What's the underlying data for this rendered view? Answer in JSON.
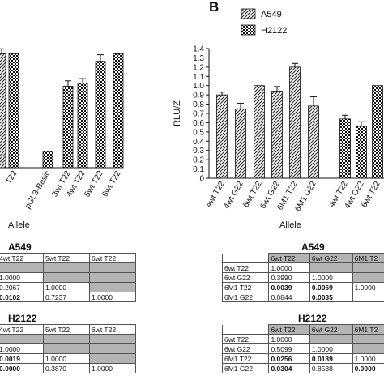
{
  "panel_b_label": "B",
  "chart_data": [
    {
      "type": "bar",
      "title": "",
      "xlabel": "Allele",
      "ylabel": "",
      "ylim": [
        0,
        1.5
      ],
      "categories": [
        "pGL3-Basic",
        "3wt T22",
        "4wt T22",
        "5wt T22",
        "6wt T22"
      ],
      "cut_categories": [
        "T22"
      ],
      "values": [
        0.15,
        0.75,
        0.78,
        0.98,
        1.05
      ],
      "errors": [
        0.0,
        0.05,
        0.04,
        0.06,
        0.0
      ],
      "series": [
        {
          "name": "",
          "pattern": "hatch",
          "values": [
            null,
            null,
            null,
            null,
            null
          ]
        },
        {
          "name": "",
          "pattern": "checker",
          "values": [
            0.15,
            0.75,
            0.78,
            0.98,
            1.05
          ]
        }
      ]
    },
    {
      "type": "bar",
      "title": "",
      "xlabel": "Allele",
      "ylabel": "RLU/Z",
      "ylim": [
        0,
        1.4
      ],
      "yticks": [
        "0",
        "0.1",
        "0.2",
        "0.3",
        "0.4",
        "0.5",
        "0.6",
        "0.7",
        "0.8",
        "0.9",
        "1.0",
        "1.1",
        "1.2",
        "1.3",
        "1.4"
      ],
      "categories": [
        "4wt T22",
        "4wt G22",
        "6wt T22",
        "6wt G22",
        "6M1 T22",
        "6M1 G22",
        "4wt T22",
        "4wt G22",
        "6wt T22"
      ],
      "legend_position": "top-left",
      "series": [
        {
          "name": "A549",
          "pattern": "hatch",
          "values": [
            0.9,
            0.75,
            1.0,
            0.94,
            1.2,
            0.78,
            null,
            null,
            null
          ],
          "errors": [
            0.03,
            0.06,
            0.0,
            0.05,
            0.04,
            0.1,
            null,
            null,
            null
          ]
        },
        {
          "name": "H2122",
          "pattern": "checker",
          "values": [
            null,
            null,
            null,
            null,
            null,
            null,
            0.64,
            0.56,
            1.0
          ],
          "errors": [
            null,
            null,
            null,
            null,
            null,
            null,
            0.04,
            0.05,
            0.0
          ]
        }
      ]
    }
  ],
  "tables": {
    "a549_left": {
      "title": "A549",
      "rows": [
        [
          "4wt T22",
          "5wt T22",
          "6wt T22"
        ],
        [
          "",
          "",
          ""
        ],
        [
          "1.0000",
          "",
          ""
        ],
        [
          "0.2067",
          "1.0000",
          ""
        ],
        [
          "0.0102",
          "0.7237",
          "1.0000"
        ]
      ]
    },
    "h2122_left": {
      "title": "H2122",
      "rows": [
        [
          "4wt T22",
          "5wt T22",
          "6wt T22"
        ],
        [
          "",
          "",
          ""
        ],
        [
          "1.0000",
          "",
          ""
        ],
        [
          "0.0019",
          "1.0000",
          ""
        ],
        [
          "0.0000",
          "0.3870",
          "1.0000"
        ]
      ]
    },
    "a549_right": {
      "title": "A549",
      "rows": [
        [
          "",
          "6wt T22",
          "6wt G22",
          "6M1 T2"
        ],
        [
          "6wt T22",
          "1.0000",
          "",
          ""
        ],
        [
          "6wt G22",
          "0.3990",
          "1.0000",
          ""
        ],
        [
          "6M1 T22",
          "0.0039",
          "0.0069",
          "1.0000"
        ],
        [
          "6M1 G22",
          "0.0844",
          "0.0035",
          ""
        ]
      ]
    },
    "h2122_right": {
      "title": "H2122",
      "rows": [
        [
          "",
          "6wt T22",
          "6wt G22",
          "6M1 T2"
        ],
        [
          "6wt T22",
          "1.0000",
          "",
          ""
        ],
        [
          "6wt G22",
          "0.5099",
          "1.0000",
          ""
        ],
        [
          "6M1 T22",
          "0.0256",
          "0.0189",
          "1.0000"
        ],
        [
          "6M1 G22",
          "0.0304",
          "0.8588",
          "0.0000"
        ]
      ]
    }
  }
}
